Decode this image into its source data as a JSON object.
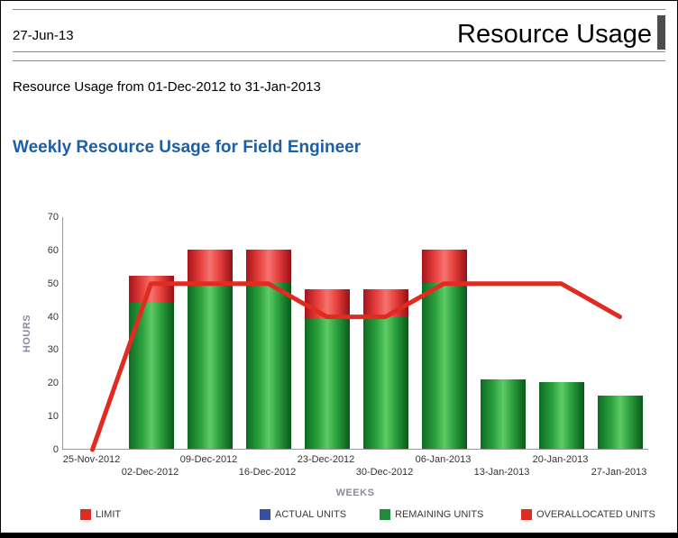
{
  "header": {
    "date": "27-Jun-13",
    "title": "Resource Usage"
  },
  "report": {
    "subtitle": "Resource Usage from 01-Dec-2012 to 31-Jan-2013"
  },
  "chart_data": {
    "type": "bar",
    "subtype": "stacked-bars-with-line",
    "title": "Weekly Resource Usage for Field Engineer",
    "xlabel": "WEEKS",
    "ylabel": "HOURS",
    "ylim": [
      0,
      70
    ],
    "yticks": [
      0,
      10,
      20,
      30,
      40,
      50,
      60,
      70
    ],
    "grid": false,
    "legend_position": "bottom",
    "categories": [
      "25-Nov-2012",
      "02-Dec-2012",
      "09-Dec-2012",
      "16-Dec-2012",
      "23-Dec-2012",
      "30-Dec-2012",
      "06-Jan-2013",
      "13-Jan-2013",
      "20-Jan-2013",
      "27-Jan-2013"
    ],
    "series": [
      {
        "name": "ACTUAL UNITS",
        "type": "bar",
        "color": "#3A4E9E",
        "values": [
          0,
          0,
          0,
          0,
          0,
          0,
          0,
          0,
          0,
          0
        ]
      },
      {
        "name": "REMAINING UNITS",
        "type": "bar",
        "color": "#1F8C3C",
        "values": [
          0,
          44,
          49,
          50,
          39,
          40,
          50,
          21,
          20,
          16
        ]
      },
      {
        "name": "OVERALLOCATED UNITS",
        "type": "bar",
        "color": "#E02B20",
        "values": [
          0,
          8,
          11,
          10,
          9,
          8,
          10,
          0,
          0,
          0
        ]
      },
      {
        "name": "LIMIT",
        "type": "line",
        "color": "#E02B20",
        "values": [
          0,
          50,
          50,
          50,
          40,
          40,
          50,
          50,
          50,
          40
        ]
      }
    ],
    "legend": [
      {
        "label": "LIMIT",
        "color": "#E02B20"
      },
      {
        "label": "ACTUAL UNITS",
        "color": "#3A4E9E"
      },
      {
        "label": "REMAINING UNITS",
        "color": "#1F8C3C"
      },
      {
        "label": "OVERALLOCATED UNITS",
        "color": "#E02B20"
      }
    ]
  }
}
